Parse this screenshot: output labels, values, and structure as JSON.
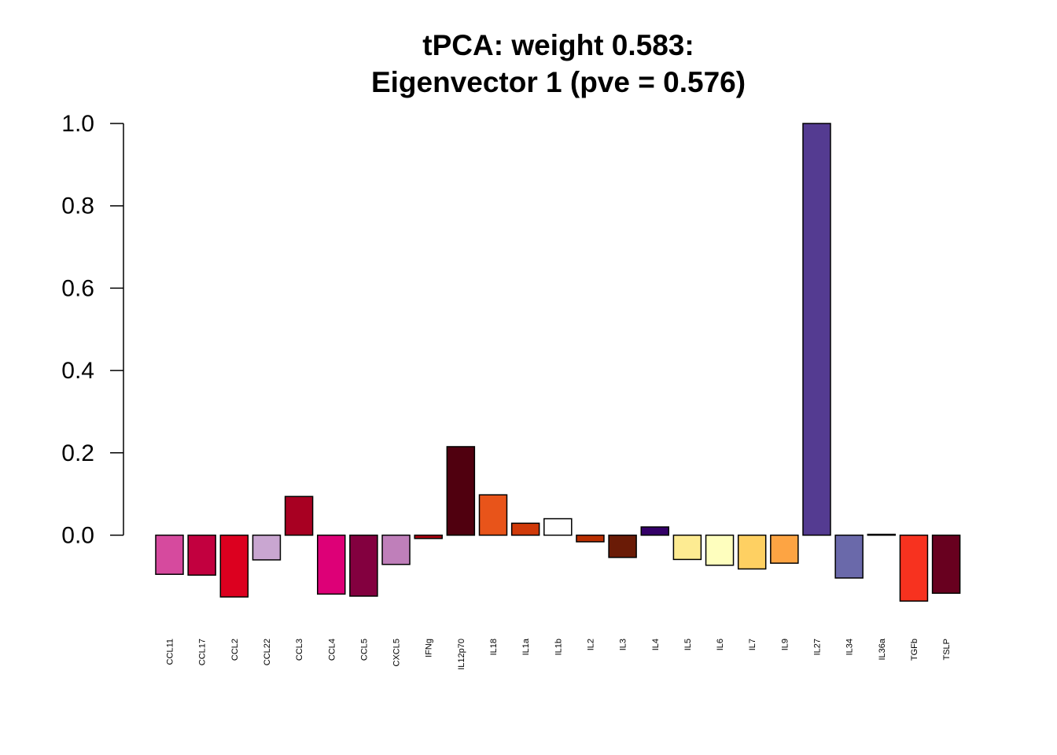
{
  "chart_data": {
    "type": "bar",
    "title_lines": [
      "tPCA: weight 0.583:",
      "Eigenvector 1 (pve = 0.576)"
    ],
    "xlabel": "",
    "ylabel": "",
    "ylim": [
      -0.2,
      1.0
    ],
    "yticks": [
      "0.0",
      "0.2",
      "0.4",
      "0.6",
      "0.8",
      "1.0"
    ],
    "ytick_values": [
      0.0,
      0.2,
      0.4,
      0.6,
      0.8,
      1.0
    ],
    "grid": false,
    "categories": [
      "CCL11",
      "CCL17",
      "CCL2",
      "CCL22",
      "CCL3",
      "CCL4",
      "CCL5",
      "CXCL5",
      "IFNg",
      "IL12p70",
      "IL18",
      "IL1a",
      "IL1b",
      "IL2",
      "IL3",
      "IL4",
      "IL5",
      "IL6",
      "IL7",
      "IL9",
      "IL27",
      "IL34",
      "IL36a",
      "TGFb",
      "TSLP"
    ],
    "values": [
      -0.095,
      -0.097,
      -0.15,
      -0.06,
      0.094,
      -0.143,
      -0.148,
      -0.071,
      -0.008,
      0.215,
      0.098,
      0.029,
      0.04,
      -0.016,
      -0.054,
      0.02,
      -0.059,
      -0.073,
      -0.082,
      -0.068,
      1.0,
      -0.104,
      0.002,
      -0.16,
      -0.141
    ],
    "colors": [
      "#d64a9e",
      "#c2003f",
      "#dc001f",
      "#c9a6d1",
      "#a80022",
      "#dd0077",
      "#83003f",
      "#bf7fba",
      "#a8000f",
      "#50000f",
      "#e8541a",
      "#d03a0a",
      "#ffffff",
      "#b82e00",
      "#6a1b06",
      "#340068",
      "#fdeb92",
      "#fefebe",
      "#fed062",
      "#fda443",
      "#543b91",
      "#6a69aa",
      "#888888",
      "#f7321f",
      "#68001f"
    ]
  }
}
